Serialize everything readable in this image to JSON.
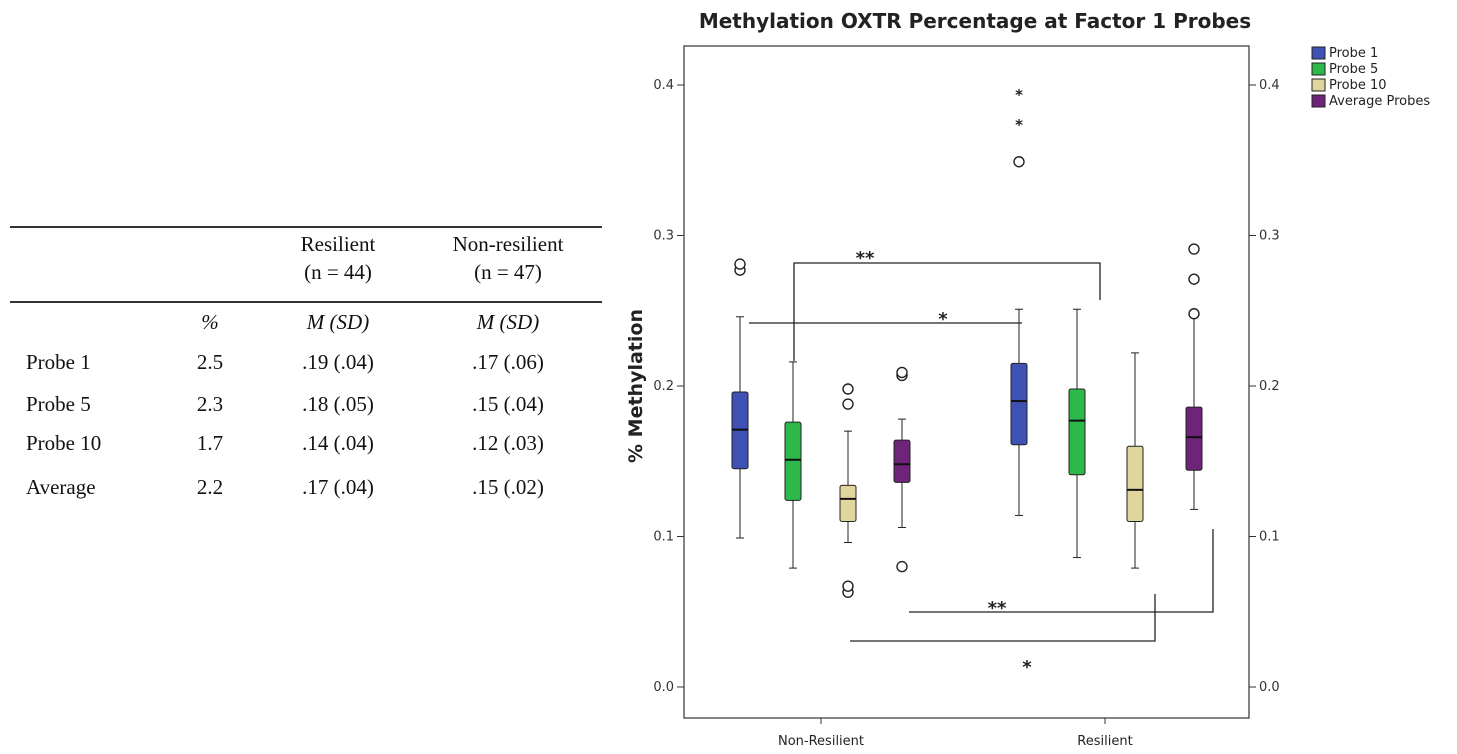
{
  "table": {
    "headers": {
      "resilient": "Resilient",
      "resilient_n": "(n = 44)",
      "nonresilient": "Non-resilient",
      "nonresilient_n": "(n = 47)"
    },
    "subheaders": {
      "pct": "%",
      "res": "M (SD)",
      "nonres": "M (SD)"
    },
    "rows": [
      {
        "label": "Probe 1",
        "pct": "2.5",
        "res": ".19 (.04)",
        "nonres": ".17 (.06)"
      },
      {
        "label": "Probe 5",
        "pct": "2.3",
        "res": ".18 (.05)",
        "nonres": ".15 (.04)"
      },
      {
        "label": "Probe 10",
        "pct": "1.7",
        "res": ".14 (.04)",
        "nonres": ".12 (.03)"
      },
      {
        "label": "Average",
        "pct": "2.2",
        "res": ".17 (.04)",
        "nonres": ".15 (.02)"
      }
    ]
  },
  "chart_data": {
    "type": "boxplot",
    "title": "Methylation OXTR Percentage at Factor 1 Probes",
    "ylabel": "% Methylation",
    "xlabel": "",
    "ylim": [
      0.0,
      0.42
    ],
    "yticks": [
      "0.0",
      "0.1",
      "0.2",
      "0.3",
      "0.4"
    ],
    "categories": [
      "Non-Resilient",
      "Resilient"
    ],
    "legend_position": "top-right",
    "series": [
      {
        "name": "Probe 1",
        "color": "#3f51b5",
        "boxes": [
          {
            "min": 0.099,
            "q1": 0.145,
            "median": 0.171,
            "q3": 0.196,
            "max": 0.246,
            "outliers": [
              0.277,
              0.281
            ],
            "extremes": []
          },
          {
            "min": 0.114,
            "q1": 0.161,
            "median": 0.19,
            "q3": 0.215,
            "max": 0.251,
            "outliers": [
              0.349
            ],
            "extremes": [
              0.374,
              0.394
            ]
          }
        ]
      },
      {
        "name": "Probe 5",
        "color": "#2db84a",
        "boxes": [
          {
            "min": 0.079,
            "q1": 0.124,
            "median": 0.151,
            "q3": 0.176,
            "max": 0.216,
            "outliers": [],
            "extremes": []
          },
          {
            "min": 0.086,
            "q1": 0.141,
            "median": 0.177,
            "q3": 0.198,
            "max": 0.251,
            "outliers": [],
            "extremes": []
          }
        ]
      },
      {
        "name": "Probe 10",
        "color": "#e0d59a",
        "boxes": [
          {
            "min": 0.096,
            "q1": 0.11,
            "median": 0.125,
            "q3": 0.134,
            "max": 0.17,
            "outliers": [
              0.063,
              0.067,
              0.188,
              0.198
            ],
            "extremes": []
          },
          {
            "min": 0.079,
            "q1": 0.11,
            "median": 0.131,
            "q3": 0.16,
            "max": 0.222,
            "outliers": [],
            "extremes": []
          }
        ]
      },
      {
        "name": "Average Probes",
        "color": "#6d2479",
        "boxes": [
          {
            "min": 0.106,
            "q1": 0.136,
            "median": 0.148,
            "q3": 0.164,
            "max": 0.178,
            "outliers": [
              0.08,
              0.207,
              0.209
            ],
            "extremes": []
          },
          {
            "min": 0.118,
            "q1": 0.144,
            "median": 0.166,
            "q3": 0.186,
            "max": 0.246,
            "outliers": [
              0.248,
              0.271,
              0.291
            ],
            "extremes": []
          }
        ]
      }
    ],
    "significance": [
      {
        "label": "**"
      },
      {
        "label": "*"
      },
      {
        "label": "**"
      },
      {
        "label": "*"
      }
    ]
  }
}
